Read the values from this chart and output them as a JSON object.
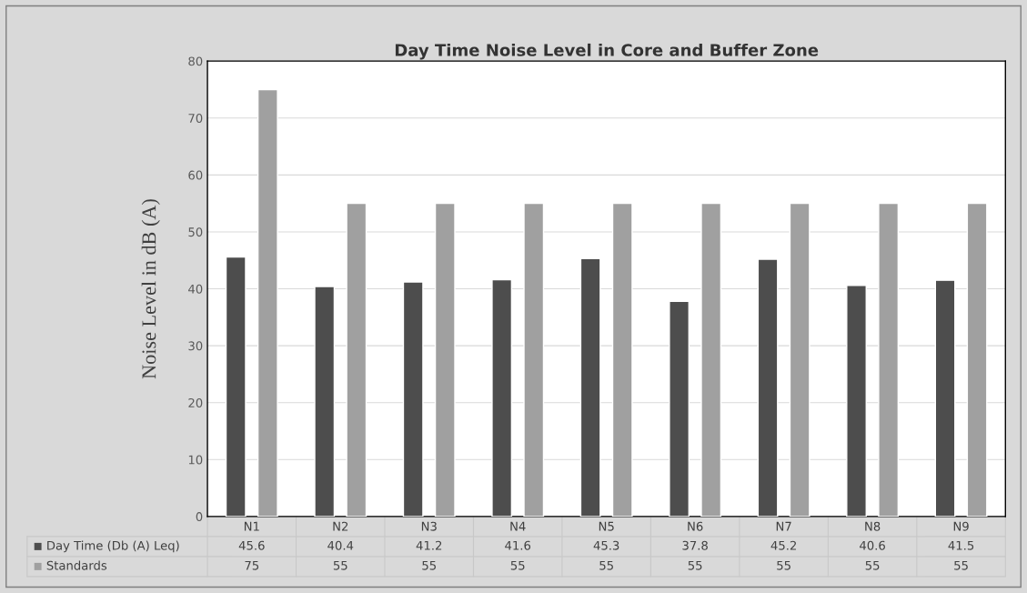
{
  "chart_data": {
    "type": "bar",
    "title": "Day Time Noise Level in Core and Buffer Zone",
    "ylabel": "Noise Level in dB (A)",
    "categories": [
      "N1",
      "N2",
      "N3",
      "N4",
      "N5",
      "N6",
      "N7",
      "N8",
      "N9"
    ],
    "series": [
      {
        "name": "Day Time (Db (A) Leq)",
        "color": "#4d4d4d",
        "values": [
          45.6,
          40.4,
          41.2,
          41.6,
          45.3,
          37.8,
          45.2,
          40.6,
          41.5
        ]
      },
      {
        "name": "Standards",
        "color": "#a0a0a0",
        "values": [
          75,
          55,
          55,
          55,
          55,
          55,
          55,
          55,
          55
        ]
      }
    ],
    "ylim": [
      0,
      80
    ],
    "yticks": [
      0,
      10,
      20,
      30,
      40,
      50,
      60,
      70,
      80
    ],
    "grid": "y",
    "legend": "bottom",
    "data_labels": true
  }
}
